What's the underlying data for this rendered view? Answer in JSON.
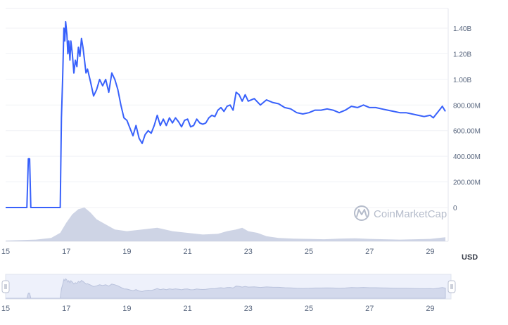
{
  "chart_data": {
    "type": "line",
    "title": "",
    "xlabel": "",
    "ylabel": "",
    "currency": "USD",
    "watermark": "CoinMarketCap",
    "grid": true,
    "y_axis_side": "right",
    "ylim": [
      0,
      1500000000
    ],
    "xlim": [
      15,
      29.5
    ],
    "y_ticks": [
      {
        "value": 0,
        "label": "0"
      },
      {
        "value": 200000000,
        "label": "200.00M"
      },
      {
        "value": 400000000,
        "label": "400.00M"
      },
      {
        "value": 600000000,
        "label": "600.00M"
      },
      {
        "value": 800000000,
        "label": "800.00M"
      },
      {
        "value": 1000000000,
        "label": "1.00B"
      },
      {
        "value": 1200000000,
        "label": "1.20B"
      },
      {
        "value": 1400000000,
        "label": "1.40B"
      }
    ],
    "x_ticks": [
      {
        "value": 15,
        "label": "15"
      },
      {
        "value": 17,
        "label": "17"
      },
      {
        "value": 19,
        "label": "19"
      },
      {
        "value": 21,
        "label": "21"
      },
      {
        "value": 23,
        "label": "23"
      },
      {
        "value": 25,
        "label": "25"
      },
      {
        "value": 27,
        "label": "27"
      },
      {
        "value": 29,
        "label": "29"
      }
    ],
    "series": [
      {
        "kind": "line",
        "color": "#3861fb",
        "x": [
          15,
          15.4,
          15.7,
          15.75,
          15.79,
          15.83,
          15.9,
          16.4,
          16.8,
          16.84,
          16.88,
          16.92,
          16.95,
          16.98,
          17.0,
          17.02,
          17.05,
          17.08,
          17.12,
          17.15,
          17.2,
          17.25,
          17.3,
          17.35,
          17.4,
          17.45,
          17.5,
          17.55,
          17.6,
          17.65,
          17.7,
          17.8,
          17.9,
          18.0,
          18.1,
          18.2,
          18.3,
          18.4,
          18.5,
          18.6,
          18.7,
          18.8,
          18.9,
          19.0,
          19.1,
          19.2,
          19.3,
          19.4,
          19.5,
          19.6,
          19.7,
          19.8,
          19.9,
          20.0,
          20.1,
          20.2,
          20.3,
          20.4,
          20.5,
          20.6,
          20.7,
          20.8,
          20.9,
          21.0,
          21.1,
          21.2,
          21.3,
          21.4,
          21.5,
          21.6,
          21.7,
          21.8,
          21.9,
          22.0,
          22.1,
          22.2,
          22.3,
          22.4,
          22.5,
          22.6,
          22.7,
          22.8,
          22.9,
          23.0,
          23.2,
          23.4,
          23.6,
          23.8,
          24.0,
          24.2,
          24.4,
          24.6,
          24.8,
          25.0,
          25.2,
          25.4,
          25.6,
          25.8,
          26.0,
          26.2,
          26.4,
          26.6,
          26.8,
          27.0,
          27.2,
          27.4,
          27.6,
          27.8,
          28.0,
          28.2,
          28.4,
          28.6,
          28.8,
          29.0,
          29.1,
          29.2,
          29.3,
          29.4,
          29.5
        ],
        "y": [
          0,
          0,
          0,
          380000000,
          380000000,
          0,
          0,
          0,
          0,
          700000000,
          1000000000,
          1400000000,
          1300000000,
          1450000000,
          1400000000,
          1350000000,
          1200000000,
          1300000000,
          1150000000,
          1300000000,
          1200000000,
          1050000000,
          1150000000,
          1100000000,
          1250000000,
          1180000000,
          1320000000,
          1250000000,
          1150000000,
          1050000000,
          1080000000,
          980000000,
          870000000,
          920000000,
          1000000000,
          950000000,
          1000000000,
          900000000,
          1050000000,
          1000000000,
          920000000,
          800000000,
          700000000,
          680000000,
          620000000,
          560000000,
          640000000,
          540000000,
          500000000,
          570000000,
          600000000,
          580000000,
          640000000,
          720000000,
          640000000,
          690000000,
          640000000,
          700000000,
          660000000,
          700000000,
          670000000,
          630000000,
          680000000,
          690000000,
          630000000,
          640000000,
          690000000,
          660000000,
          650000000,
          660000000,
          700000000,
          720000000,
          710000000,
          760000000,
          780000000,
          750000000,
          790000000,
          800000000,
          760000000,
          900000000,
          880000000,
          830000000,
          880000000,
          830000000,
          850000000,
          800000000,
          840000000,
          820000000,
          810000000,
          780000000,
          770000000,
          740000000,
          730000000,
          740000000,
          760000000,
          760000000,
          770000000,
          760000000,
          740000000,
          760000000,
          790000000,
          780000000,
          800000000,
          780000000,
          780000000,
          770000000,
          760000000,
          750000000,
          740000000,
          740000000,
          730000000,
          720000000,
          710000000,
          720000000,
          700000000,
          730000000,
          760000000,
          790000000,
          750000000
        ]
      },
      {
        "kind": "volume-area",
        "color": "#c5cde0",
        "x": [
          15,
          16.0,
          16.5,
          16.8,
          17.0,
          17.2,
          17.4,
          17.6,
          17.8,
          18.0,
          18.3,
          18.6,
          19.0,
          19.5,
          20.0,
          20.5,
          21.0,
          21.5,
          22.0,
          22.3,
          22.6,
          22.8,
          23.0,
          23.3,
          23.6,
          24.0,
          24.5,
          25.0,
          25.5,
          26.0,
          26.5,
          27.0,
          27.5,
          28.0,
          28.5,
          29.0,
          29.5
        ],
        "y": [
          0.02,
          0.05,
          0.1,
          0.25,
          0.55,
          0.8,
          0.95,
          1.0,
          0.85,
          0.65,
          0.5,
          0.35,
          0.3,
          0.35,
          0.4,
          0.3,
          0.25,
          0.2,
          0.22,
          0.3,
          0.35,
          0.4,
          0.3,
          0.25,
          0.15,
          0.1,
          0.08,
          0.07,
          0.06,
          0.08,
          0.09,
          0.07,
          0.06,
          0.05,
          0.06,
          0.07,
          0.12
        ]
      }
    ]
  },
  "navigator": {
    "x_ticks": [
      {
        "value": 15,
        "label": "15"
      },
      {
        "value": 17,
        "label": "17"
      },
      {
        "value": 19,
        "label": "19"
      },
      {
        "value": 21,
        "label": "21"
      },
      {
        "value": 23,
        "label": "23"
      },
      {
        "value": 25,
        "label": "25"
      },
      {
        "value": 27,
        "label": "27"
      },
      {
        "value": 29,
        "label": "29"
      }
    ]
  }
}
